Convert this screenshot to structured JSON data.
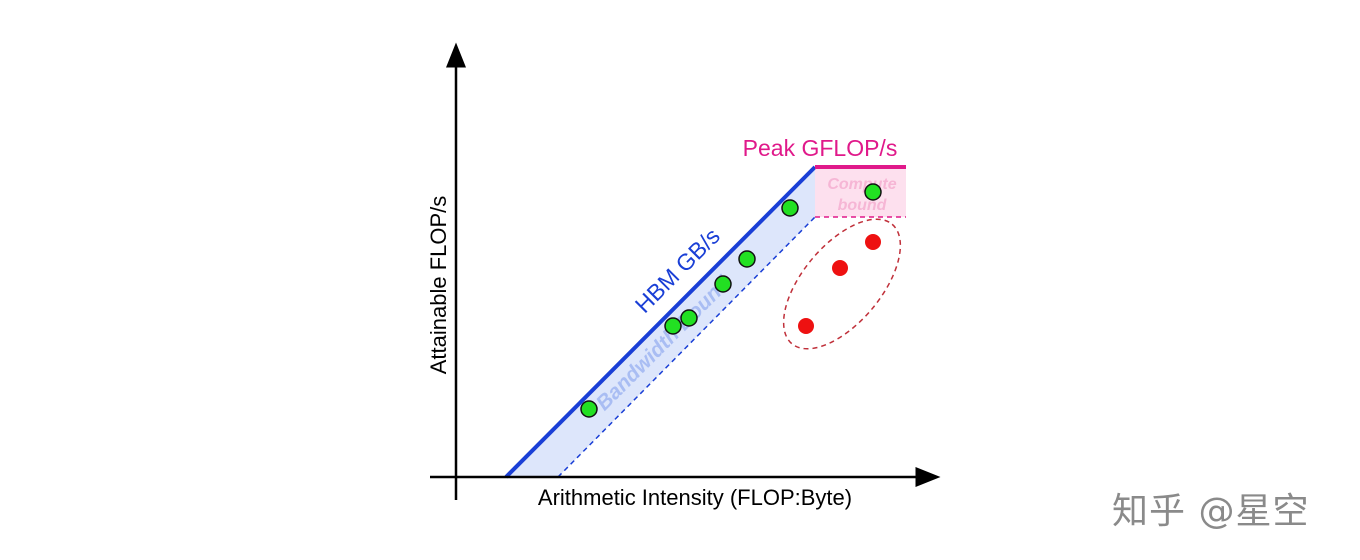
{
  "diagram": {
    "x_axis_label": "Arithmetic Intensity (FLOP:Byte)",
    "y_axis_label": "Attainable FLOP/s",
    "roof_compute_label": "Peak GFLOP/s",
    "roof_memory_label": "HBM GB/s",
    "bandwidth_region_label": "Bandwidth Bound",
    "compute_region_label_line1": "Compute",
    "compute_region_label_line2": "bound",
    "colors": {
      "memory_roof": "#1a3fd6",
      "memory_band": "#dde6fb",
      "compute_roof": "#e0198a",
      "compute_band": "#fde0ee",
      "good_points": "#22e022",
      "bad_points": "#ee1111",
      "outlier_ellipse": "#c0303a"
    },
    "green_point_count": 7,
    "red_point_count": 3
  },
  "watermark": "知乎 @星空"
}
